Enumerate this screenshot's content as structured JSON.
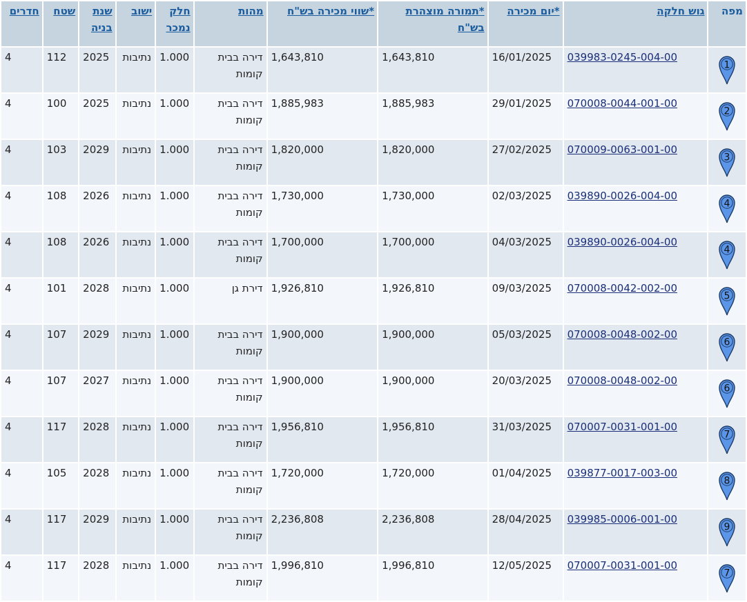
{
  "headers": {
    "map": "מפה",
    "gush": "גוש חלקה",
    "sale_date": "*יום מכירה",
    "declared": "*תמורה מוצהרת בש\"ח",
    "sale_value": "*שווי מכירה בש\"ח",
    "type": "מהות",
    "part": "חלק נמכר",
    "city": "ישוב",
    "year": "שנת בניה",
    "area": "שטח",
    "rooms": "חדרים"
  },
  "colors": {
    "header_bg": "#c6d4df",
    "row_odd": "#e2e8f0",
    "row_even": "#f3f6fa",
    "pin_fill": "#5b95e8",
    "link": "#1a2f78"
  },
  "rows": [
    {
      "pin": "1",
      "gush": "039983-0245-004-00",
      "date": "16/01/2025",
      "declared": "1,643,810",
      "value": "1,643,810",
      "type": "דירה בבית קומות",
      "part": "1.000",
      "city": "נתיבות",
      "year": "2025",
      "area": "112",
      "rooms": "4"
    },
    {
      "pin": "2",
      "gush": "070008-0044-001-00",
      "date": "29/01/2025",
      "declared": "1,885,983",
      "value": "1,885,983",
      "type": "דירה בבית קומות",
      "part": "1.000",
      "city": "נתיבות",
      "year": "2025",
      "area": "100",
      "rooms": "4"
    },
    {
      "pin": "3",
      "gush": "070009-0063-001-00",
      "date": "27/02/2025",
      "declared": "1,820,000",
      "value": "1,820,000",
      "type": "דירה בבית קומות",
      "part": "1.000",
      "city": "נתיבות",
      "year": "2029",
      "area": "103",
      "rooms": "4"
    },
    {
      "pin": "4",
      "gush": "039890-0026-004-00",
      "date": "02/03/2025",
      "declared": "1,730,000",
      "value": "1,730,000",
      "type": "דירה בבית קומות",
      "part": "1.000",
      "city": "נתיבות",
      "year": "2026",
      "area": "108",
      "rooms": "4"
    },
    {
      "pin": "4",
      "gush": "039890-0026-004-00",
      "date": "04/03/2025",
      "declared": "1,700,000",
      "value": "1,700,000",
      "type": "דירה בבית קומות",
      "part": "1.000",
      "city": "נתיבות",
      "year": "2026",
      "area": "108",
      "rooms": "4"
    },
    {
      "pin": "5",
      "gush": "070008-0042-002-00",
      "date": "09/03/2025",
      "declared": "1,926,810",
      "value": "1,926,810",
      "type": "דירת גן",
      "part": "1.000",
      "city": "נתיבות",
      "year": "2028",
      "area": "101",
      "rooms": "4"
    },
    {
      "pin": "6",
      "gush": "070008-0048-002-00",
      "date": "05/03/2025",
      "declared": "1,900,000",
      "value": "1,900,000",
      "type": "דירה בבית קומות",
      "part": "1.000",
      "city": "נתיבות",
      "year": "2029",
      "area": "107",
      "rooms": "4"
    },
    {
      "pin": "6",
      "gush": "070008-0048-002-00",
      "date": "20/03/2025",
      "declared": "1,900,000",
      "value": "1,900,000",
      "type": "דירה בבית קומות",
      "part": "1.000",
      "city": "נתיבות",
      "year": "2027",
      "area": "107",
      "rooms": "4"
    },
    {
      "pin": "7",
      "gush": "070007-0031-001-00",
      "date": "31/03/2025",
      "declared": "1,956,810",
      "value": "1,956,810",
      "type": "דירה בבית קומות",
      "part": "1.000",
      "city": "נתיבות",
      "year": "2028",
      "area": "117",
      "rooms": "4"
    },
    {
      "pin": "8",
      "gush": "039877-0017-003-00",
      "date": "01/04/2025",
      "declared": "1,720,000",
      "value": "1,720,000",
      "type": "דירה בבית קומות",
      "part": "1.000",
      "city": "נתיבות",
      "year": "2028",
      "area": "105",
      "rooms": "4"
    },
    {
      "pin": "9",
      "gush": "039985-0006-001-00",
      "date": "28/04/2025",
      "declared": "2,236,808",
      "value": "2,236,808",
      "type": "דירה בבית קומות",
      "part": "1.000",
      "city": "נתיבות",
      "year": "2029",
      "area": "117",
      "rooms": "4"
    },
    {
      "pin": "7",
      "gush": "070007-0031-001-00",
      "date": "12/05/2025",
      "declared": "1,996,810",
      "value": "1,996,810",
      "type": "דירה בבית קומות",
      "part": "1.000",
      "city": "נתיבות",
      "year": "2028",
      "area": "117",
      "rooms": "4"
    }
  ]
}
